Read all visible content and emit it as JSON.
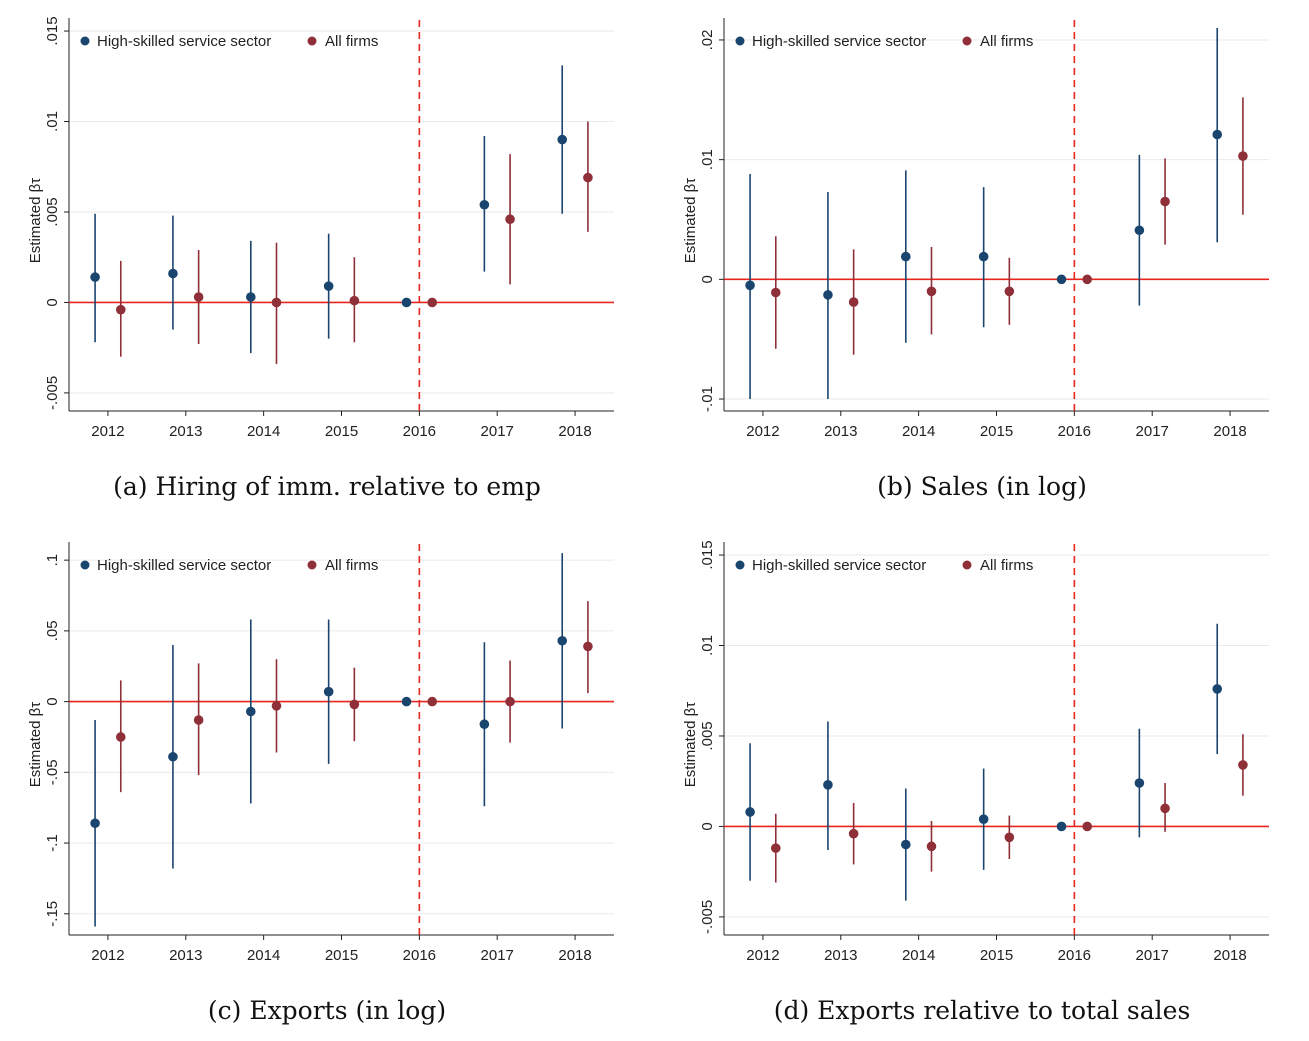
{
  "legend": {
    "series_a": "High-skilled service sector",
    "series_b": "All firms"
  },
  "colors": {
    "series_a": "#1a456e",
    "series_b": "#8f2f38",
    "reference": "#e8261f",
    "axis": "#222222"
  },
  "chart_data": [
    {
      "type": "scatter",
      "caption": "(a) Hiring of imm. relative to emp",
      "ylabel": "Estimated βτ",
      "ylim": [
        -0.006,
        0.0155
      ],
      "yticks": [
        -0.005,
        0,
        0.005,
        0.01,
        0.015
      ],
      "ytick_labels": [
        "-.005",
        "0",
        ".005",
        ".01",
        ".015"
      ],
      "x": [
        2012,
        2013,
        2014,
        2015,
        2016,
        2017,
        2018
      ],
      "event_year": 2016,
      "grid": true,
      "legend_position": "top-left",
      "series": [
        {
          "name": "High-skilled service sector",
          "estimates": [
            0.0014,
            0.0016,
            0.0003,
            0.0009,
            0.0,
            0.0054,
            0.009
          ],
          "ci_low": [
            -0.0022,
            -0.0015,
            -0.0028,
            -0.002,
            0.0,
            0.0017,
            0.0049
          ],
          "ci_high": [
            0.0049,
            0.0048,
            0.0034,
            0.0038,
            0.0,
            0.0092,
            0.0131
          ]
        },
        {
          "name": "All firms",
          "estimates": [
            -0.0004,
            0.0003,
            0.0,
            0.0001,
            0.0,
            0.0046,
            0.0069
          ],
          "ci_low": [
            -0.003,
            -0.0023,
            -0.0034,
            -0.0022,
            0.0,
            0.001,
            0.0039
          ],
          "ci_high": [
            0.0023,
            0.0029,
            0.0033,
            0.0025,
            0.0,
            0.0082,
            0.01
          ]
        }
      ]
    },
    {
      "type": "scatter",
      "caption": "(b) Sales (in log)",
      "ylabel": "Estimated βτ",
      "ylim": [
        -0.011,
        0.0215
      ],
      "yticks": [
        -0.01,
        0,
        0.01,
        0.02
      ],
      "ytick_labels": [
        "-.01",
        "0",
        ".01",
        ".02"
      ],
      "x": [
        2012,
        2013,
        2014,
        2015,
        2016,
        2017,
        2018
      ],
      "event_year": 2016,
      "grid": true,
      "legend_position": "top-left",
      "series": [
        {
          "name": "High-skilled service sector",
          "estimates": [
            -0.0005,
            -0.0013,
            0.0019,
            0.0019,
            0.0,
            0.0041,
            0.0121
          ],
          "ci_low": [
            -0.01,
            -0.01,
            -0.0053,
            -0.004,
            0.0,
            -0.0022,
            0.0031
          ],
          "ci_high": [
            0.0088,
            0.0073,
            0.0091,
            0.0077,
            0.0,
            0.0104,
            0.021
          ]
        },
        {
          "name": "All firms",
          "estimates": [
            -0.0011,
            -0.0019,
            -0.001,
            -0.001,
            0.0,
            0.0065,
            0.0103
          ],
          "ci_low": [
            -0.0058,
            -0.0063,
            -0.0046,
            -0.0038,
            0.0,
            0.0029,
            0.0054
          ],
          "ci_high": [
            0.0036,
            0.0025,
            0.0027,
            0.0018,
            0.0,
            0.0101,
            0.0152
          ]
        }
      ]
    },
    {
      "type": "scatter",
      "caption": "(c) Exports (in log)",
      "ylabel": "Estimated βτ",
      "ylim": [
        -0.165,
        0.11
      ],
      "yticks": [
        -0.15,
        -0.1,
        -0.05,
        0,
        0.05,
        0.1
      ],
      "ytick_labels": [
        "-.15",
        "-.1",
        "-.05",
        "0",
        ".05",
        ".1"
      ],
      "x": [
        2012,
        2013,
        2014,
        2015,
        2016,
        2017,
        2018
      ],
      "event_year": 2016,
      "grid": true,
      "legend_position": "top-left",
      "series": [
        {
          "name": "High-skilled service sector",
          "estimates": [
            -0.086,
            -0.039,
            -0.007,
            0.007,
            0.0,
            -0.016,
            0.043
          ],
          "ci_low": [
            -0.159,
            -0.118,
            -0.072,
            -0.044,
            0.0,
            -0.074,
            -0.019
          ],
          "ci_high": [
            -0.013,
            0.04,
            0.058,
            0.058,
            0.0,
            0.042,
            0.105
          ]
        },
        {
          "name": "All firms",
          "estimates": [
            -0.025,
            -0.013,
            -0.003,
            -0.002,
            0.0,
            0.0,
            0.039
          ],
          "ci_low": [
            -0.064,
            -0.052,
            -0.036,
            -0.028,
            0.0,
            -0.029,
            0.006
          ],
          "ci_high": [
            0.015,
            0.027,
            0.03,
            0.024,
            0.0,
            0.029,
            0.071
          ]
        }
      ]
    },
    {
      "type": "scatter",
      "caption": "(d) Exports relative to total sales",
      "ylabel": "Estimated βτ",
      "ylim": [
        -0.006,
        0.0155
      ],
      "yticks": [
        -0.005,
        0,
        0.005,
        0.01,
        0.015
      ],
      "ytick_labels": [
        "-.005",
        "0",
        ".005",
        ".01",
        ".015"
      ],
      "x": [
        2012,
        2013,
        2014,
        2015,
        2016,
        2017,
        2018
      ],
      "event_year": 2016,
      "grid": true,
      "legend_position": "top-left",
      "series": [
        {
          "name": "High-skilled service sector",
          "estimates": [
            0.0008,
            0.0023,
            -0.001,
            0.0004,
            0.0,
            0.0024,
            0.0076
          ],
          "ci_low": [
            -0.003,
            -0.0013,
            -0.0041,
            -0.0024,
            0.0,
            -0.0006,
            0.004
          ],
          "ci_high": [
            0.0046,
            0.0058,
            0.0021,
            0.0032,
            0.0,
            0.0054,
            0.0112
          ]
        },
        {
          "name": "All firms",
          "estimates": [
            -0.0012,
            -0.0004,
            -0.0011,
            -0.0006,
            0.0,
            0.001,
            0.0034
          ],
          "ci_low": [
            -0.0031,
            -0.0021,
            -0.0025,
            -0.0018,
            0.0,
            -0.0003,
            0.0017
          ],
          "ci_high": [
            0.0007,
            0.0013,
            0.0003,
            0.0006,
            0.0,
            0.0024,
            0.0051
          ]
        }
      ]
    }
  ]
}
